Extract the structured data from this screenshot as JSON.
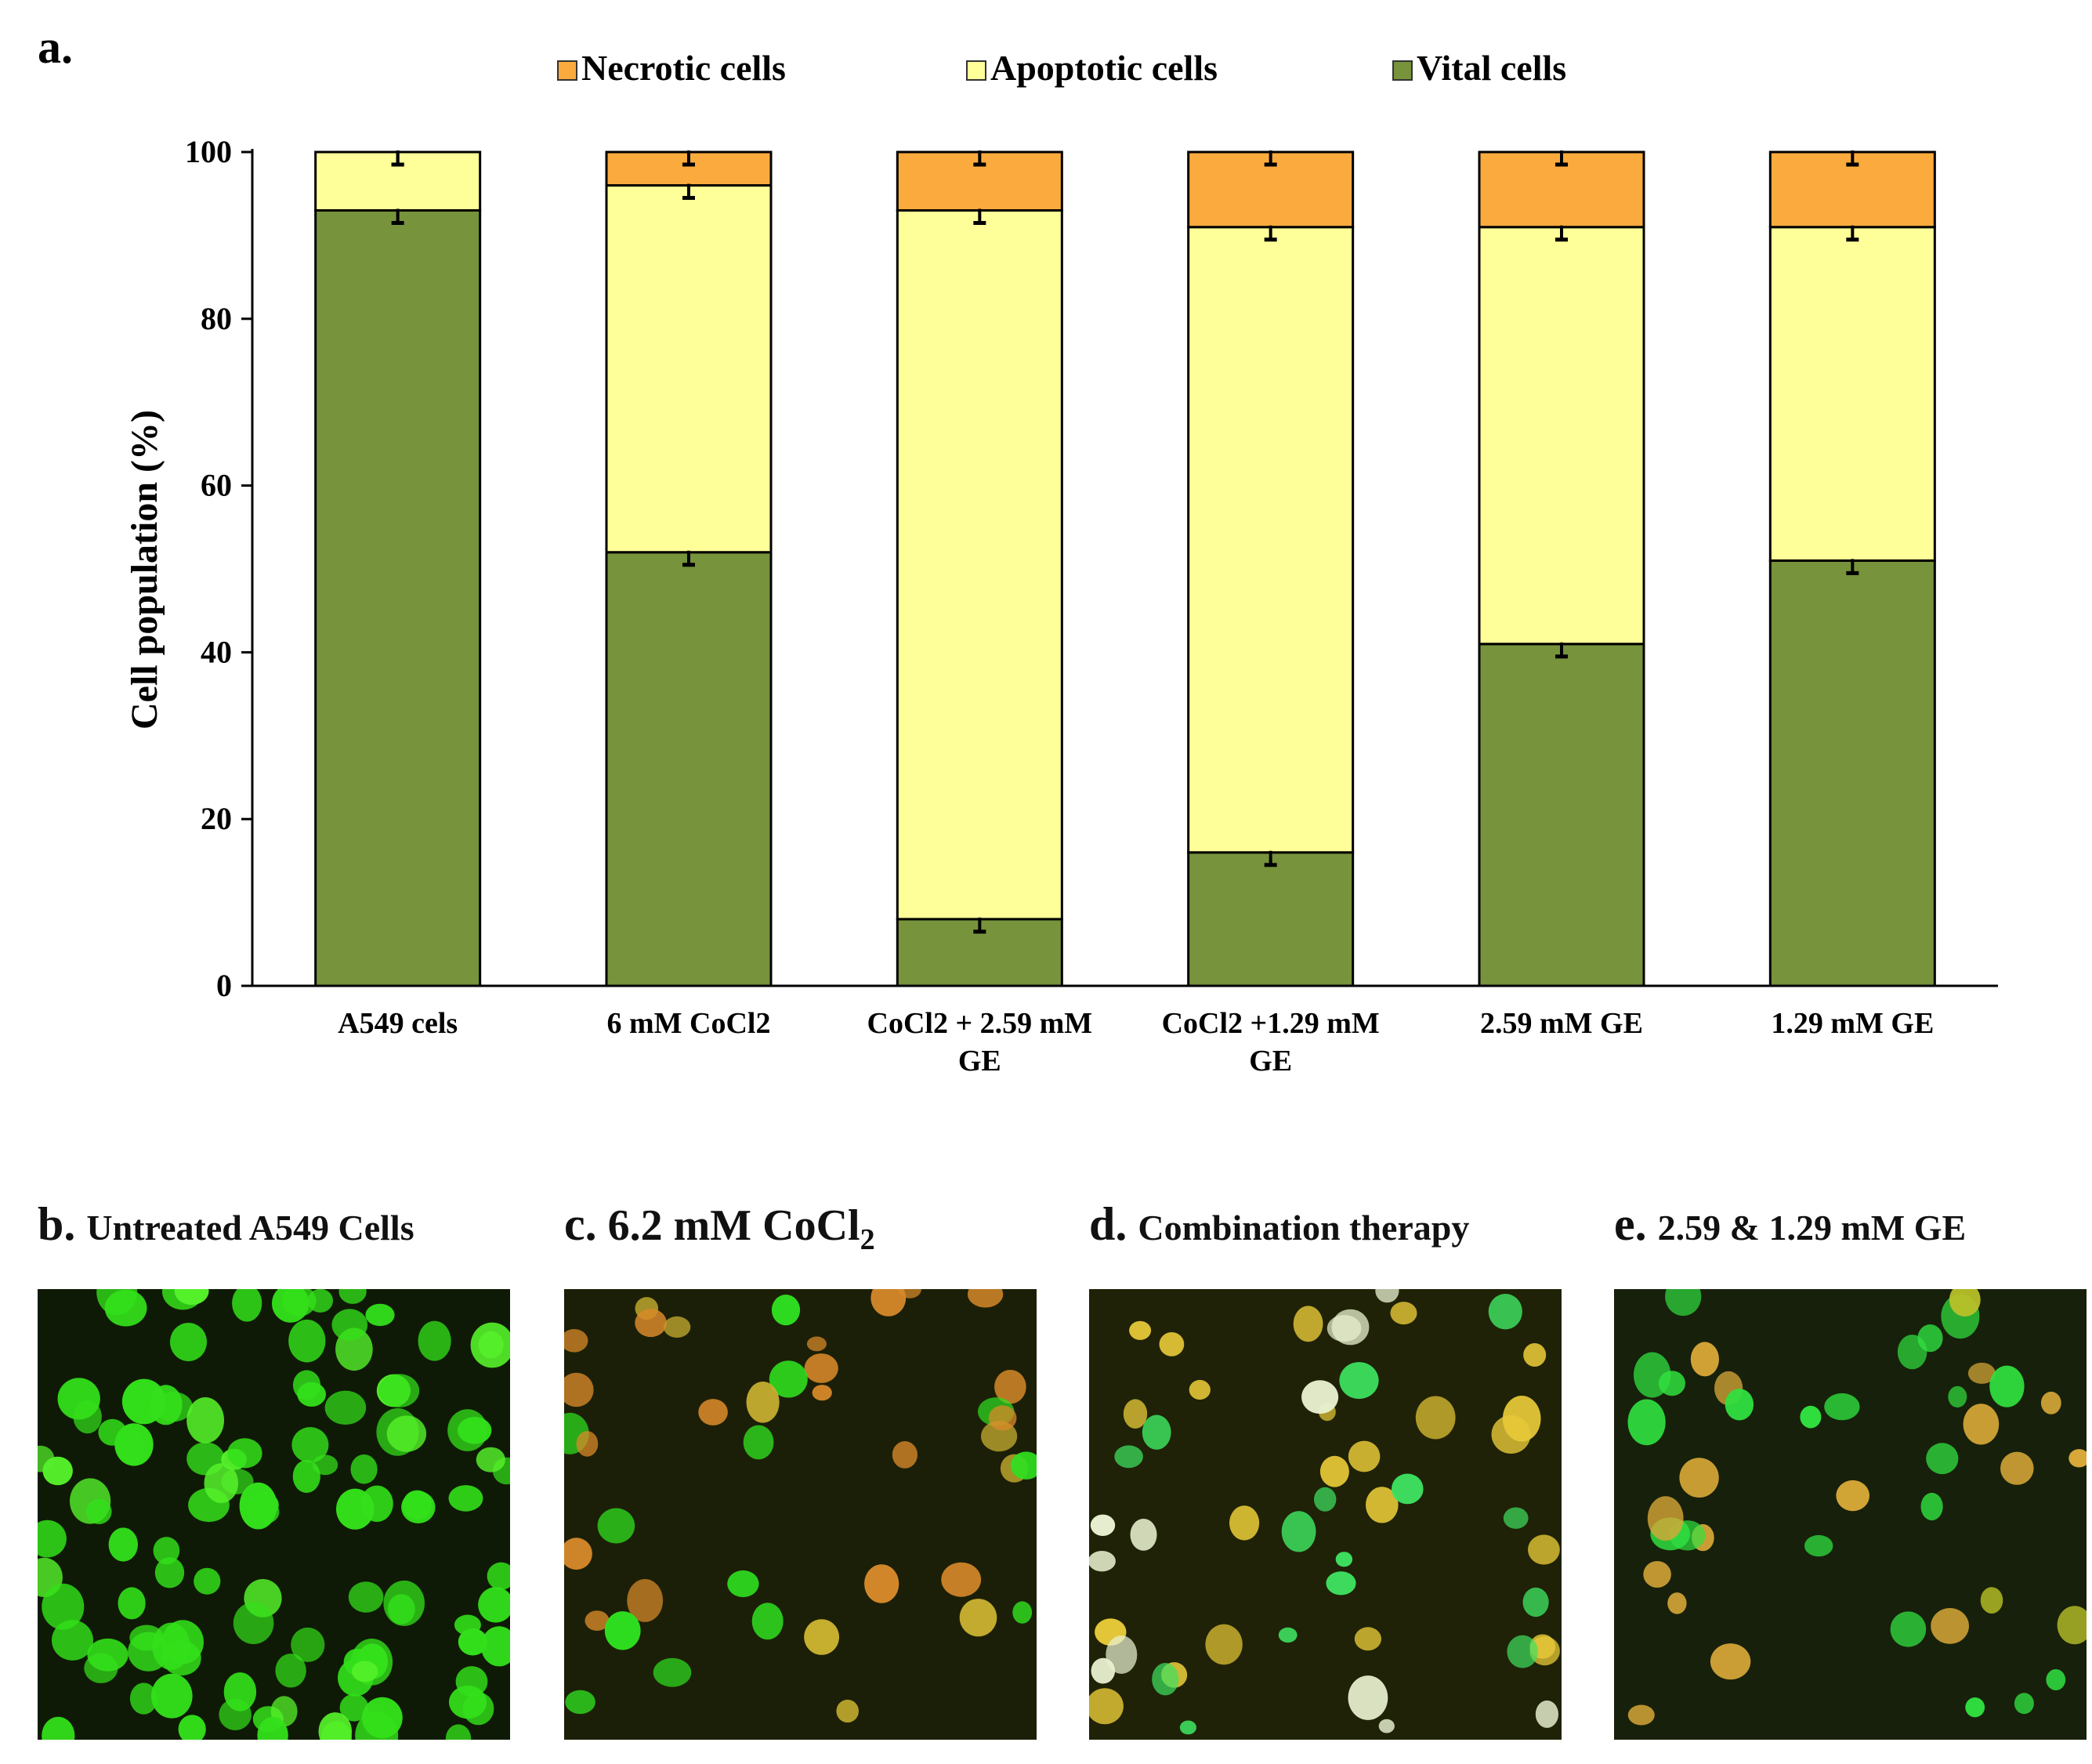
{
  "panel_a_label": "a.",
  "chart_data": {
    "type": "bar",
    "stacked": true,
    "title": "",
    "xlabel": "",
    "ylabel": "Cell population (%)",
    "ylim": [
      0,
      100
    ],
    "yticks": [
      0,
      20,
      40,
      60,
      80,
      100
    ],
    "categories": [
      [
        "A549 cels"
      ],
      [
        "6 mM CoCl2"
      ],
      [
        "CoCl2 + 2.59 mM",
        "GE"
      ],
      [
        "CoCl2 +1.29 mM",
        "GE"
      ],
      [
        "2.59 mM GE"
      ],
      [
        "1.29 mM GE"
      ]
    ],
    "series": [
      {
        "name": "Vital cells",
        "color": "#77933c",
        "values": [
          93,
          52,
          8,
          16,
          41,
          51
        ]
      },
      {
        "name": "Apoptotic cells",
        "color": "#ffff99",
        "values": [
          7,
          44,
          85,
          75,
          50,
          40
        ]
      },
      {
        "name": "Necrotic cells",
        "color": "#fbab3d",
        "values": [
          0,
          4,
          7,
          9,
          9,
          9
        ]
      }
    ],
    "legend_order": [
      "Necrotic cells",
      "Apoptotic cells",
      "Vital cells"
    ],
    "legend_position": "top",
    "error_bars": true,
    "grid": false
  },
  "micrographs": [
    {
      "letter": "b.",
      "title": "Untreated A549 Cells",
      "palette": "green"
    },
    {
      "letter": "c.",
      "title": "6.2 mM CoCl",
      "subscript": "2",
      "palette": "mixed-orange"
    },
    {
      "letter": "d.",
      "title": "Combination therapy",
      "palette": "mixed-yellow"
    },
    {
      "letter": "e.",
      "title": "2.59 & 1.29 mM GE",
      "palette": "mixed-green"
    }
  ]
}
